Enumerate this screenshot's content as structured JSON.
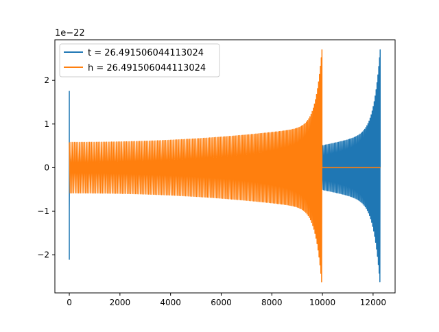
{
  "chart_data": {
    "type": "line",
    "title": "",
    "xlabel": "",
    "ylabel": "",
    "offset_label": "1e−22",
    "xlim": [
      -570,
      12870
    ],
    "ylim": [
      -2.87,
      2.93
    ],
    "xticks": [
      0,
      2000,
      4000,
      6000,
      8000,
      10000,
      12000
    ],
    "xtick_labels": [
      "0",
      "2000",
      "4000",
      "6000",
      "8000",
      "10000",
      "12000"
    ],
    "yticks": [
      -2,
      -1,
      0,
      1,
      2
    ],
    "ytick_labels": [
      "−2",
      "−1",
      "0",
      "1",
      "2"
    ],
    "legend_position": "top-left",
    "grid": false,
    "series": [
      {
        "name": "t = 26.491506044113024",
        "color": "#1f77b4",
        "segments": [
          {
            "kind": "glitch",
            "x": [
              0,
              0,
              0,
              0,
              0,
              10,
              20
            ],
            "y": [
              0,
              1.75,
              -2.1,
              1.2,
              -1.0,
              0.2,
              0
            ]
          },
          {
            "kind": "flat",
            "x": [
              20,
              2400
            ],
            "y": [
              0,
              0
            ]
          },
          {
            "kind": "chirp",
            "x_start": 2400,
            "x_end": 12280,
            "amp_start": 0.1,
            "amp_end": 0.82,
            "peak_x": 12270,
            "peak_max": 2.7,
            "peak_min": -2.65,
            "cycles": 180
          }
        ]
      },
      {
        "name": "h = 26.491506044113024",
        "color": "#ff7f0e",
        "segments": [
          {
            "kind": "chirp",
            "x_start": 0,
            "x_end": 9980,
            "amp_start": 0.58,
            "amp_end": 0.95,
            "peak_x": 9975,
            "peak_max": 2.7,
            "peak_min": -2.65,
            "cycles": 170
          },
          {
            "kind": "flat",
            "x": [
              9990,
              12290
            ],
            "y": [
              0,
              0
            ]
          }
        ]
      }
    ]
  }
}
